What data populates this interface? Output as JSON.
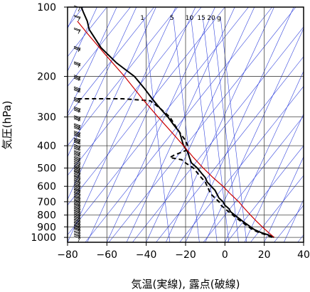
{
  "chart_data": {
    "type": "line",
    "xlabel": "気温(実線), 露点(破線)",
    "ylabel": "気圧(hPa)",
    "x_ticks": [
      -80,
      -60,
      -40,
      -20,
      0,
      20,
      40
    ],
    "y_ticks": [
      100,
      200,
      300,
      400,
      500,
      600,
      700,
      800,
      900,
      1000
    ],
    "xlim": [
      -80,
      40
    ],
    "ylim": [
      1050,
      100
    ],
    "y_scale": "log",
    "grid": true,
    "mixing_ratio_labels": [
      {
        "label": "1",
        "t": -42
      },
      {
        "label": "5",
        "t": -27
      },
      {
        "label": "10",
        "t": -18
      },
      {
        "label": "15",
        "t": -12
      },
      {
        "label": "20",
        "t": -7
      },
      {
        "label": "g",
        "t": -3
      }
    ],
    "series": [
      {
        "style": "solid",
        "color": "#000000",
        "points": [
          [
            25,
            1000
          ],
          [
            22,
            975
          ],
          [
            18,
            950
          ],
          [
            15,
            925
          ],
          [
            13,
            900
          ],
          [
            11,
            875
          ],
          [
            9,
            850
          ],
          [
            7,
            825
          ],
          [
            5,
            800
          ],
          [
            3,
            775
          ],
          [
            2,
            750
          ],
          [
            0,
            725
          ],
          [
            -1,
            700
          ],
          [
            -3,
            675
          ],
          [
            -4,
            650
          ],
          [
            -5,
            625
          ],
          [
            -7,
            600
          ],
          [
            -9,
            575
          ],
          [
            -10,
            550
          ],
          [
            -12,
            525
          ],
          [
            -14,
            500
          ],
          [
            -17,
            475
          ],
          [
            -18,
            450
          ],
          [
            -19,
            425
          ],
          [
            -21,
            400
          ],
          [
            -22,
            375
          ],
          [
            -23,
            350
          ],
          [
            -26,
            325
          ],
          [
            -29,
            300
          ],
          [
            -33,
            275
          ],
          [
            -37,
            250
          ],
          [
            -41,
            225
          ],
          [
            -46,
            200
          ],
          [
            -55,
            175
          ],
          [
            -63,
            150
          ],
          [
            -69,
            125
          ],
          [
            -70,
            115
          ],
          [
            -72,
            105
          ],
          [
            -73,
            100
          ]
        ]
      },
      {
        "style": "dashed",
        "color": "#000000",
        "points": [
          [
            24,
            1000
          ],
          [
            21,
            975
          ],
          [
            17,
            950
          ],
          [
            14,
            925
          ],
          [
            12,
            900
          ],
          [
            10,
            875
          ],
          [
            8,
            850
          ],
          [
            6,
            825
          ],
          [
            4,
            800
          ],
          [
            2,
            775
          ],
          [
            0,
            750
          ],
          [
            -2,
            725
          ],
          [
            -3,
            700
          ],
          [
            -5,
            675
          ],
          [
            -7,
            650
          ],
          [
            -8,
            625
          ],
          [
            -9,
            600
          ],
          [
            -10,
            575
          ],
          [
            -12,
            550
          ],
          [
            -14,
            525
          ],
          [
            -16,
            500
          ],
          [
            -20,
            475
          ],
          [
            -22,
            460
          ],
          [
            -28,
            450
          ],
          [
            -26,
            440
          ],
          [
            -20,
            420
          ],
          [
            -19,
            400
          ],
          [
            -20,
            380
          ],
          [
            -22,
            360
          ],
          [
            -24,
            340
          ],
          [
            -26,
            320
          ],
          [
            -28,
            300
          ],
          [
            -33,
            275
          ],
          [
            -38,
            255
          ],
          [
            -52,
            250
          ],
          [
            -70,
            250
          ],
          [
            -76,
            250
          ]
        ]
      },
      {
        "style": "solid",
        "color": "#cc0000",
        "points": [
          [
            25,
            1000
          ],
          [
            22,
            950
          ],
          [
            19,
            900
          ],
          [
            16,
            850
          ],
          [
            13,
            800
          ],
          [
            10,
            750
          ],
          [
            7,
            700
          ],
          [
            3,
            650
          ],
          [
            -1,
            600
          ],
          [
            -6,
            550
          ],
          [
            -11,
            500
          ],
          [
            -16,
            450
          ],
          [
            -21,
            400
          ],
          [
            -27,
            350
          ],
          [
            -34,
            300
          ],
          [
            -42,
            250
          ],
          [
            -51,
            200
          ],
          [
            -61,
            160
          ],
          [
            -70,
            130
          ],
          [
            -75,
            115
          ]
        ]
      }
    ],
    "wind_barbs": [
      {
        "p": 1000,
        "kt": 5
      },
      {
        "p": 975,
        "kt": 10
      },
      {
        "p": 950,
        "kt": 10
      },
      {
        "p": 925,
        "kt": 10
      },
      {
        "p": 900,
        "kt": 15
      },
      {
        "p": 875,
        "kt": 15
      },
      {
        "p": 850,
        "kt": 15
      },
      {
        "p": 825,
        "kt": 15
      },
      {
        "p": 800,
        "kt": 15
      },
      {
        "p": 775,
        "kt": 20
      },
      {
        "p": 750,
        "kt": 20
      },
      {
        "p": 725,
        "kt": 20
      },
      {
        "p": 700,
        "kt": 20
      },
      {
        "p": 675,
        "kt": 20
      },
      {
        "p": 650,
        "kt": 20
      },
      {
        "p": 625,
        "kt": 20
      },
      {
        "p": 600,
        "kt": 25
      },
      {
        "p": 575,
        "kt": 25
      },
      {
        "p": 550,
        "kt": 25
      },
      {
        "p": 525,
        "kt": 25
      },
      {
        "p": 500,
        "kt": 25
      },
      {
        "p": 475,
        "kt": 25
      },
      {
        "p": 450,
        "kt": 25
      },
      {
        "p": 425,
        "kt": 25
      },
      {
        "p": 400,
        "kt": 25
      },
      {
        "p": 375,
        "kt": 25
      },
      {
        "p": 350,
        "kt": 25
      },
      {
        "p": 325,
        "kt": 25
      },
      {
        "p": 300,
        "kt": 20
      },
      {
        "p": 275,
        "kt": 20
      },
      {
        "p": 250,
        "kt": 20
      },
      {
        "p": 225,
        "kt": 20
      },
      {
        "p": 200,
        "kt": 20
      },
      {
        "p": 175,
        "kt": 15
      },
      {
        "p": 150,
        "kt": 15
      },
      {
        "p": 125,
        "kt": 10
      },
      {
        "p": 110,
        "kt": 10
      },
      {
        "p": 100,
        "kt": 5
      }
    ]
  }
}
